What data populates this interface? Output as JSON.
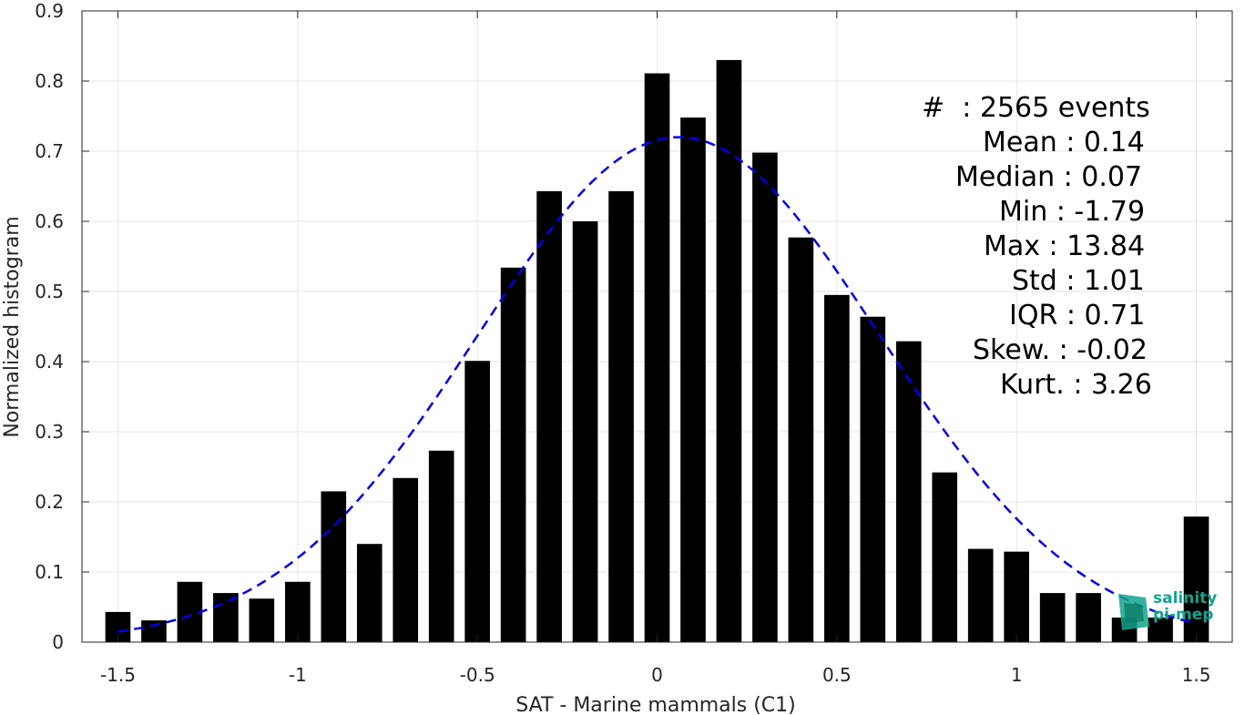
{
  "chart_data": {
    "type": "bar",
    "xlabel": "SAT - Marine mammals (C1)",
    "ylabel": "Normalized histogram",
    "xlim": [
      -1.6,
      1.6
    ],
    "ylim": [
      0,
      0.9
    ],
    "xticks": [
      "-1.5",
      "-1",
      "-0.5",
      "0",
      "0.5",
      "1",
      "1.5"
    ],
    "xtick_values": [
      -1.5,
      -1,
      -0.5,
      0,
      0.5,
      1,
      1.5
    ],
    "yticks": [
      "0",
      "0.1",
      "0.2",
      "0.3",
      "0.4",
      "0.5",
      "0.6",
      "0.7",
      "0.8",
      "0.9"
    ],
    "ytick_values": [
      0,
      0.1,
      0.2,
      0.3,
      0.4,
      0.5,
      0.6,
      0.7,
      0.8,
      0.9
    ],
    "grid": true,
    "bar_color": "#000000",
    "fit_color": "#0000ee",
    "bin_width": 0.1,
    "x": [
      -1.5,
      -1.4,
      -1.3,
      -1.2,
      -1.1,
      -1.0,
      -0.9,
      -0.8,
      -0.7,
      -0.6,
      -0.5,
      -0.4,
      -0.3,
      -0.2,
      -0.1,
      0.0,
      0.1,
      0.2,
      0.3,
      0.4,
      0.5,
      0.6,
      0.7,
      0.8,
      0.9,
      1.0,
      1.1,
      1.2,
      1.3,
      1.4,
      1.5
    ],
    "values": [
      0.043,
      0.031,
      0.086,
      0.07,
      0.062,
      0.086,
      0.215,
      0.14,
      0.234,
      0.273,
      0.401,
      0.534,
      0.643,
      0.6,
      0.643,
      0.811,
      0.748,
      0.83,
      0.698,
      0.577,
      0.495,
      0.464,
      0.429,
      0.242,
      0.133,
      0.129,
      0.07,
      0.07,
      0.035,
      0.035,
      0.179
    ],
    "fit": {
      "style": "dashed",
      "mean": 0.06,
      "std": 0.56,
      "peak": 0.72,
      "x_range": [
        -1.5,
        1.5
      ]
    },
    "annotations": [
      "#  : 2565 events",
      "Mean : 0.14",
      "Median : 0.07",
      "Min : -1.79",
      "Max : 13.84",
      "Std : 1.01",
      "IQR : 0.71",
      "Skew. : -0.02",
      "Kurt. : 3.26"
    ]
  },
  "logo": {
    "line1": "salinity",
    "line2": "pi-mep",
    "color": "#14a38b"
  }
}
